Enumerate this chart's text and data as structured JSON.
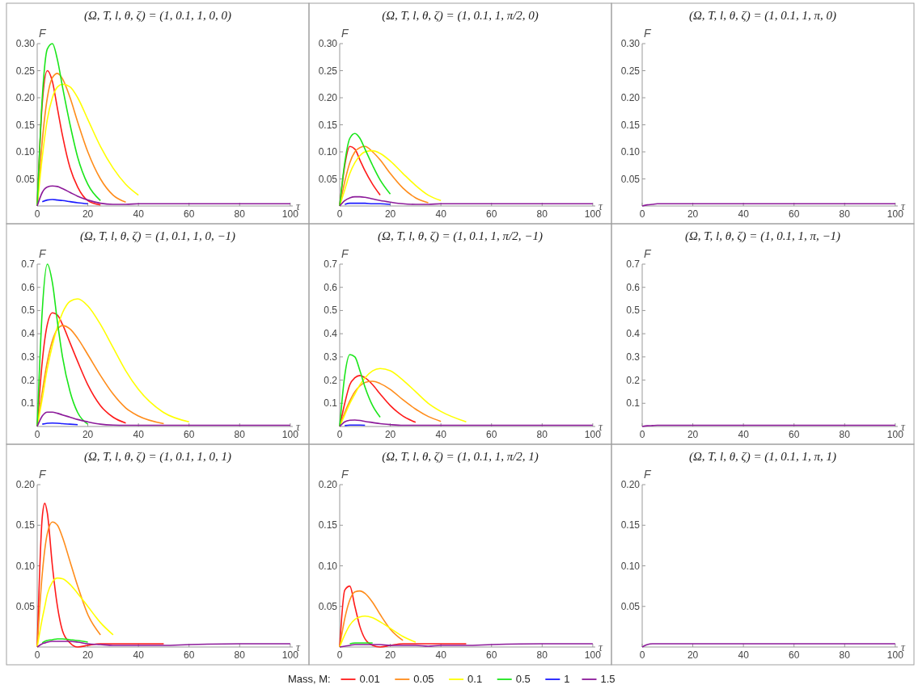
{
  "chart_data": [
    {
      "type": "line",
      "title": "(Ω, T, l, θ, ζ) = (1, 0.1, 1, 0, 0)",
      "xlabel": "τ",
      "ylabel": "F",
      "xlim": [
        0,
        101
      ],
      "xticks": [
        0,
        20,
        40,
        60,
        80,
        100
      ],
      "ylim": [
        0,
        0.3
      ],
      "yticks": [
        0.05,
        {
          "value": 0.1,
          "label": "0.10"
        },
        0.15,
        {
          "value": 0.2,
          "label": "0.20"
        },
        0.25,
        {
          "value": 0.3,
          "label": "0.30"
        }
      ],
      "legend": "bottom",
      "legend_title": "Mass, M:",
      "x": [
        0,
        2,
        4,
        6,
        8,
        10,
        13,
        16,
        20,
        25,
        30,
        35,
        40,
        50,
        60,
        80,
        100
      ],
      "series": [
        {
          "name": "0.01",
          "color": "#ff1a1a",
          "values": [
            0,
            0.19,
            0.25,
            0.23,
            0.18,
            0.13,
            0.07,
            0.035,
            0.01,
            0.002,
            null,
            null,
            null,
            null,
            null,
            null,
            null
          ]
        },
        {
          "name": "0.05",
          "color": "#ff8c1a",
          "values": [
            0,
            0.12,
            0.2,
            0.237,
            0.245,
            0.235,
            0.2,
            0.155,
            0.1,
            0.05,
            0.02,
            0.007,
            null,
            null,
            null,
            null,
            null
          ]
        },
        {
          "name": "0.1",
          "color": "#ffff00",
          "values": [
            0,
            0.09,
            0.16,
            0.2,
            0.22,
            0.225,
            0.22,
            0.2,
            0.16,
            0.11,
            0.07,
            0.04,
            0.02,
            null,
            null,
            null,
            null
          ]
        },
        {
          "name": "0.5",
          "color": "#1ae61a",
          "values": [
            0,
            0.2,
            0.29,
            0.3,
            0.27,
            0.22,
            0.15,
            0.09,
            0.04,
            0.01,
            null,
            null,
            null,
            null,
            null,
            null,
            null
          ]
        },
        {
          "name": "1",
          "color": "#1a1aff",
          "values": [
            null,
            0.008,
            0.011,
            0.012,
            0.011,
            0.01,
            0.008,
            0.006,
            0.004,
            null,
            null,
            null,
            null,
            null,
            null,
            null,
            null
          ]
        },
        {
          "name": "1.5",
          "color": "#8c1a9a",
          "values": [
            0,
            0.025,
            0.035,
            0.037,
            0.036,
            0.032,
            0.025,
            0.018,
            0.011,
            0.005,
            0.003,
            0.003,
            0.004,
            0.004,
            0.004,
            0.004,
            0.004
          ]
        }
      ]
    },
    {
      "type": "line",
      "title": "(Ω, T, l, θ, ζ) = (1, 0.1, 1, π/2, 0)",
      "xlabel": "τ",
      "ylabel": "F",
      "xlim": [
        0,
        101
      ],
      "xticks": [
        0,
        20,
        40,
        60,
        80,
        100
      ],
      "ylim": [
        0,
        0.3
      ],
      "yticks": [
        0.05,
        {
          "value": 0.1,
          "label": "0.10"
        },
        0.15,
        {
          "value": 0.2,
          "label": "0.20"
        },
        0.25,
        {
          "value": 0.3,
          "label": "0.30"
        }
      ],
      "x": [
        0,
        2,
        4,
        6,
        8,
        10,
        13,
        16,
        20,
        25,
        30,
        35,
        40,
        50,
        60,
        80,
        100
      ],
      "series": [
        {
          "color": "#ff1a1a",
          "values": [
            0,
            0.075,
            0.11,
            0.105,
            0.085,
            0.065,
            0.04,
            0.02,
            null,
            null,
            null,
            null,
            null,
            null,
            null,
            null,
            null
          ]
        },
        {
          "color": "#ff8c1a",
          "values": [
            0,
            0.045,
            0.08,
            0.1,
            0.108,
            0.11,
            0.1,
            0.085,
            0.06,
            0.033,
            0.015,
            0.006,
            null,
            null,
            null,
            null,
            null
          ]
        },
        {
          "color": "#ffff00",
          "values": [
            0,
            0.03,
            0.06,
            0.08,
            0.093,
            0.1,
            0.102,
            0.097,
            0.083,
            0.06,
            0.038,
            0.02,
            0.01,
            null,
            null,
            null,
            null
          ]
        },
        {
          "color": "#1ae61a",
          "values": [
            0,
            0.08,
            0.125,
            0.134,
            0.125,
            0.105,
            0.075,
            0.048,
            0.022,
            null,
            null,
            null,
            null,
            null,
            null,
            null,
            null
          ]
        },
        {
          "color": "#1a1aff",
          "values": [
            null,
            0.003,
            0.005,
            0.005,
            0.005,
            0.005,
            0.004,
            0.004,
            0.003,
            null,
            null,
            null,
            null,
            null,
            null,
            null,
            null
          ]
        },
        {
          "color": "#8c1a9a",
          "values": [
            0,
            0.01,
            0.015,
            0.017,
            0.017,
            0.016,
            0.013,
            0.01,
            0.007,
            0.004,
            0.003,
            0.003,
            0.004,
            0.004,
            0.004,
            0.004,
            0.004
          ]
        }
      ]
    },
    {
      "type": "line",
      "title": "(Ω, T, l, θ, ζ) = (1, 0.1, 1, π, 0)",
      "xlabel": "τ",
      "ylabel": "F",
      "xlim": [
        0,
        101
      ],
      "xticks": [
        0,
        20,
        40,
        60,
        80,
        100
      ],
      "ylim": [
        0,
        0.3
      ],
      "yticks": [
        0.05,
        {
          "value": 0.1,
          "label": "0.10"
        },
        0.15,
        {
          "value": 0.2,
          "label": "0.20"
        },
        0.25,
        {
          "value": 0.3,
          "label": "0.30"
        }
      ],
      "x": [
        0,
        2,
        4,
        6,
        8,
        10,
        13,
        16,
        20,
        25,
        30,
        35,
        40,
        50,
        60,
        80,
        100
      ],
      "series": [
        {
          "color": "#8c1a9a",
          "values": [
            0,
            0.002,
            0.003,
            0.004,
            0.004,
            0.004,
            0.004,
            0.004,
            0.004,
            0.004,
            0.004,
            0.004,
            0.004,
            0.004,
            0.004,
            0.004,
            0.004
          ]
        }
      ]
    },
    {
      "type": "line",
      "title": "(Ω, T, l, θ, ζ) = (1, 0.1, 1, 0, −1)",
      "xlabel": "τ",
      "ylabel": "F",
      "xlim": [
        0,
        101
      ],
      "xticks": [
        0,
        20,
        40,
        60,
        80,
        100
      ],
      "ylim": [
        0,
        0.7
      ],
      "yticks": [
        0.1,
        0.2,
        0.3,
        0.4,
        0.5,
        0.6,
        0.7
      ],
      "x": [
        0,
        2,
        4,
        6,
        8,
        10,
        13,
        16,
        20,
        25,
        30,
        35,
        40,
        50,
        60,
        80,
        100
      ],
      "series": [
        {
          "color": "#ff1a1a",
          "values": [
            0,
            0.28,
            0.44,
            0.49,
            0.48,
            0.44,
            0.36,
            0.28,
            0.18,
            0.09,
            0.04,
            0.015,
            null,
            null,
            null,
            null,
            null
          ]
        },
        {
          "color": "#ff8c1a",
          "values": [
            0,
            0.15,
            0.28,
            0.37,
            0.42,
            0.435,
            0.42,
            0.38,
            0.31,
            0.22,
            0.14,
            0.08,
            0.045,
            0.012,
            null,
            null,
            null
          ]
        },
        {
          "color": "#ffff00",
          "values": [
            0,
            0.12,
            0.25,
            0.35,
            0.43,
            0.49,
            0.54,
            0.55,
            0.52,
            0.44,
            0.34,
            0.24,
            0.16,
            0.06,
            0.02,
            null,
            null
          ]
        },
        {
          "color": "#1ae61a",
          "values": [
            0,
            0.5,
            0.7,
            0.62,
            0.45,
            0.3,
            0.15,
            0.06,
            0.01,
            null,
            null,
            null,
            null,
            null,
            null,
            null,
            null
          ]
        },
        {
          "color": "#1a1aff",
          "values": [
            null,
            0.01,
            0.014,
            0.015,
            0.014,
            0.012,
            0.01,
            0.008,
            null,
            null,
            null,
            null,
            null,
            null,
            null,
            null,
            null
          ]
        },
        {
          "color": "#8c1a9a",
          "values": [
            0,
            0.045,
            0.062,
            0.062,
            0.057,
            0.05,
            0.04,
            0.03,
            0.02,
            0.01,
            0.006,
            0.005,
            0.005,
            0.005,
            0.005,
            0.005,
            0.005
          ]
        }
      ]
    },
    {
      "type": "line",
      "title": "(Ω, T, l, θ, ζ) = (1, 0.1, 1, π/2, −1)",
      "xlabel": "τ",
      "ylabel": "F",
      "xlim": [
        0,
        101
      ],
      "xticks": [
        0,
        20,
        40,
        60,
        80,
        100
      ],
      "ylim": [
        0,
        0.7
      ],
      "yticks": [
        0.1,
        0.2,
        0.3,
        0.4,
        0.5,
        0.6,
        0.7
      ],
      "x": [
        0,
        2,
        4,
        6,
        8,
        10,
        13,
        16,
        20,
        25,
        30,
        35,
        40,
        50,
        60,
        80,
        100
      ],
      "series": [
        {
          "color": "#ff1a1a",
          "values": [
            0,
            0.1,
            0.18,
            0.21,
            0.22,
            0.21,
            0.18,
            0.14,
            0.09,
            0.045,
            0.018,
            null,
            null,
            null,
            null,
            null,
            null
          ]
        },
        {
          "color": "#ff8c1a",
          "values": [
            0,
            0.06,
            0.11,
            0.15,
            0.175,
            0.19,
            0.195,
            0.185,
            0.16,
            0.115,
            0.075,
            0.043,
            0.022,
            null,
            null,
            null,
            null
          ]
        },
        {
          "color": "#ffff00",
          "values": [
            0,
            0.05,
            0.1,
            0.14,
            0.18,
            0.21,
            0.24,
            0.25,
            0.24,
            0.2,
            0.15,
            0.1,
            0.065,
            0.02,
            null,
            null,
            null
          ]
        },
        {
          "color": "#1ae61a",
          "values": [
            0,
            0.22,
            0.31,
            0.3,
            0.24,
            0.17,
            0.09,
            0.04,
            null,
            null,
            null,
            null,
            null,
            null,
            null,
            null,
            null
          ]
        },
        {
          "color": "#1a1aff",
          "values": [
            null,
            0.004,
            0.006,
            0.006,
            0.006,
            0.005,
            null,
            null,
            null,
            null,
            null,
            null,
            null,
            null,
            null,
            null,
            null
          ]
        },
        {
          "color": "#8c1a9a",
          "values": [
            0,
            0.02,
            0.027,
            0.028,
            0.026,
            0.022,
            0.017,
            0.012,
            0.008,
            0.005,
            0.005,
            0.005,
            0.005,
            0.005,
            0.005,
            0.005,
            0.005
          ]
        }
      ]
    },
    {
      "type": "line",
      "title": "(Ω, T, l, θ, ζ) = (1, 0.1, 1, π, −1)",
      "xlabel": "τ",
      "ylabel": "F",
      "xlim": [
        0,
        101
      ],
      "xticks": [
        0,
        20,
        40,
        60,
        80,
        100
      ],
      "ylim": [
        0,
        0.7
      ],
      "yticks": [
        0.1,
        0.2,
        0.3,
        0.4,
        0.5,
        0.6,
        0.7
      ],
      "x": [
        0,
        2,
        4,
        6,
        8,
        10,
        13,
        16,
        20,
        25,
        30,
        35,
        40,
        50,
        60,
        80,
        100
      ],
      "series": [
        {
          "color": "#8c1a9a",
          "values": [
            0,
            0.003,
            0.004,
            0.005,
            0.005,
            0.005,
            0.005,
            0.005,
            0.005,
            0.005,
            0.005,
            0.005,
            0.005,
            0.005,
            0.005,
            0.005,
            0.005
          ]
        }
      ]
    },
    {
      "type": "line",
      "title": "(Ω, T, l, θ, ζ) = (1, 0.1, 1, 0, 1)",
      "xlabel": "τ",
      "ylabel": "F",
      "xlim": [
        0,
        101
      ],
      "xticks": [
        0,
        20,
        40,
        60,
        80,
        100
      ],
      "ylim": [
        0,
        0.2
      ],
      "yticks": [
        0.05,
        {
          "value": 0.1,
          "label": "0.10"
        },
        0.15,
        {
          "value": 0.2,
          "label": "0.20"
        }
      ],
      "x": [
        0,
        2,
        3,
        4,
        6,
        8,
        10,
        13,
        16,
        20,
        25,
        30,
        35,
        40,
        50,
        60,
        80,
        100
      ],
      "series": [
        {
          "color": "#ff1a1a",
          "values": [
            0,
            0.16,
            0.177,
            0.165,
            0.1,
            0.05,
            0.02,
            0.005,
            0,
            0.002,
            0.004,
            0.004,
            0.004,
            0.004,
            0.004,
            null,
            null,
            null
          ]
        },
        {
          "color": "#ff8c1a",
          "values": [
            0,
            0.09,
            0.12,
            0.14,
            0.154,
            0.15,
            0.135,
            0.105,
            0.075,
            0.04,
            0.015,
            null,
            null,
            null,
            null,
            null,
            null,
            null
          ]
        },
        {
          "color": "#ffff00",
          "values": [
            0,
            0.035,
            0.05,
            0.065,
            0.08,
            0.085,
            0.084,
            0.077,
            0.066,
            0.05,
            0.03,
            0.015,
            null,
            null,
            null,
            null,
            null,
            null
          ]
        },
        {
          "color": "#1ae61a",
          "values": [
            null,
            0.005,
            0.007,
            0.008,
            0.009,
            0.01,
            0.01,
            0.009,
            0.008,
            0.006,
            null,
            null,
            null,
            null,
            null,
            null,
            null,
            null
          ]
        },
        {
          "color": "#8c1a9a",
          "values": [
            0,
            0.004,
            0.005,
            0.006,
            0.007,
            0.007,
            0.007,
            0.007,
            0.006,
            0.004,
            0.003,
            0.002,
            0.002,
            0.002,
            0.002,
            0.003,
            0.004,
            0.004
          ]
        }
      ]
    },
    {
      "type": "line",
      "title": "(Ω, T, l, θ, ζ) = (1, 0.1, 1, π/2, 1)",
      "xlabel": "τ",
      "ylabel": "F",
      "xlim": [
        0,
        101
      ],
      "xticks": [
        0,
        20,
        40,
        60,
        80,
        100
      ],
      "ylim": [
        0,
        0.2
      ],
      "yticks": [
        0.05,
        {
          "value": 0.1,
          "label": "0.10"
        },
        0.15,
        {
          "value": 0.2,
          "label": "0.20"
        }
      ],
      "x": [
        0,
        2,
        4,
        6,
        8,
        10,
        13,
        16,
        20,
        25,
        30,
        35,
        40,
        50,
        60,
        80,
        100
      ],
      "series": [
        {
          "color": "#ff1a1a",
          "values": [
            0,
            0.07,
            0.075,
            0.05,
            0.025,
            0.01,
            0.002,
            0,
            0.002,
            0.004,
            0.004,
            0.004,
            0.004,
            0.004,
            null,
            null,
            null
          ]
        },
        {
          "color": "#ff8c1a",
          "values": [
            0,
            0.035,
            0.058,
            0.068,
            0.069,
            0.066,
            0.055,
            0.04,
            0.022,
            0.008,
            null,
            null,
            null,
            null,
            null,
            null,
            null
          ]
        },
        {
          "color": "#ffff00",
          "values": [
            0,
            0.015,
            0.027,
            0.034,
            0.037,
            0.038,
            0.036,
            0.031,
            0.023,
            0.013,
            0.006,
            null,
            null,
            null,
            null,
            null,
            null
          ]
        },
        {
          "color": "#1ae61a",
          "values": [
            null,
            null,
            0.004,
            0.005,
            0.005,
            0.005,
            0.005,
            null,
            null,
            null,
            null,
            null,
            null,
            null,
            null,
            null,
            null
          ]
        },
        {
          "color": "#8c1a9a",
          "values": [
            0,
            0.001,
            0.002,
            0.003,
            0.003,
            0.003,
            0.003,
            0.003,
            0.002,
            0.002,
            0.002,
            0.001,
            0.002,
            0.002,
            0.003,
            0.004,
            0.004
          ]
        }
      ]
    },
    {
      "type": "line",
      "title": "(Ω, T, l, θ, ζ) = (1, 0.1, 1, π, 1)",
      "xlabel": "τ",
      "ylabel": "F",
      "xlim": [
        0,
        101
      ],
      "xticks": [
        0,
        20,
        40,
        60,
        80,
        100
      ],
      "ylim": [
        0,
        0.2
      ],
      "yticks": [
        0.05,
        {
          "value": 0.1,
          "label": "0.10"
        },
        0.15,
        {
          "value": 0.2,
          "label": "0.20"
        }
      ],
      "x": [
        0,
        2,
        4,
        6,
        8,
        10,
        13,
        16,
        20,
        25,
        30,
        35,
        40,
        50,
        60,
        80,
        100
      ],
      "series": [
        {
          "color": "#8c1a9a",
          "values": [
            0,
            0.003,
            0.004,
            0.004,
            0.004,
            0.004,
            0.004,
            0.004,
            0.004,
            0.004,
            0.004,
            0.004,
            0.004,
            0.004,
            0.004,
            0.004,
            0.004
          ]
        }
      ]
    }
  ]
}
